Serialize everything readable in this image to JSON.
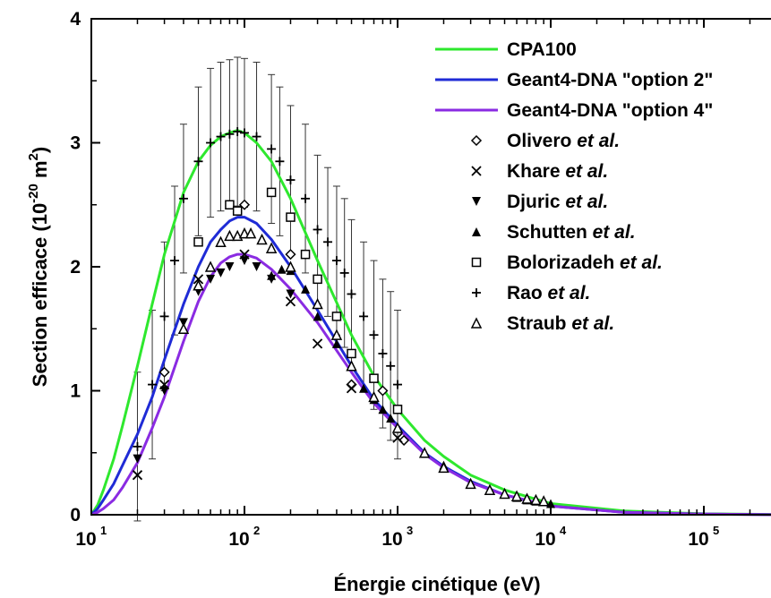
{
  "chart_data": {
    "type": "line",
    "xlabel": "Énergie cinétique (eV)",
    "ylabel": {
      "text": "Section efficace (10",
      "sup": "-20",
      "unit": " m",
      "unit_sup": "2",
      "close": ")"
    },
    "xscale": "log",
    "xlim": [
      10,
      300000
    ],
    "ylim": [
      0,
      4
    ],
    "x_ticks": [
      {
        "value": 10,
        "base": "10",
        "exp": "1"
      },
      {
        "value": 100,
        "base": "10",
        "exp": "2"
      },
      {
        "value": 1000,
        "base": "10",
        "exp": "3"
      },
      {
        "value": 10000,
        "base": "10",
        "exp": "4"
      },
      {
        "value": 100000,
        "base": "10",
        "exp": "5"
      }
    ],
    "y_ticks": [
      0,
      1,
      2,
      3,
      4
    ],
    "legend_position": "top-right",
    "series": [
      {
        "name": "CPA100",
        "color": "#2ee82e",
        "x": [
          10,
          11,
          12,
          14,
          16,
          20,
          25,
          30,
          40,
          50,
          60,
          70,
          80,
          90,
          100,
          120,
          150,
          200,
          300,
          500,
          700,
          1000,
          1500,
          2000,
          3000,
          5000,
          10000,
          30000,
          100000,
          300000
        ],
        "y": [
          0,
          0.08,
          0.2,
          0.45,
          0.72,
          1.2,
          1.7,
          2.1,
          2.6,
          2.85,
          2.98,
          3.05,
          3.08,
          3.1,
          3.08,
          3.0,
          2.85,
          2.55,
          2.05,
          1.45,
          1.12,
          0.85,
          0.6,
          0.47,
          0.32,
          0.2,
          0.09,
          0.03,
          0.008,
          0.002
        ]
      },
      {
        "name": "Geant4-DNA \"option 2\"",
        "color": "#1f2bd6",
        "x": [
          10,
          11,
          12,
          14,
          16,
          20,
          25,
          30,
          40,
          50,
          60,
          70,
          80,
          90,
          100,
          120,
          150,
          200,
          300,
          500,
          700,
          1000,
          1500,
          2000,
          3000,
          5000,
          10000,
          30000,
          100000,
          300000
        ],
        "y": [
          0,
          0.05,
          0.12,
          0.25,
          0.4,
          0.65,
          0.95,
          1.25,
          1.7,
          2.0,
          2.2,
          2.3,
          2.37,
          2.4,
          2.4,
          2.35,
          2.22,
          2.0,
          1.65,
          1.2,
          0.93,
          0.72,
          0.5,
          0.39,
          0.27,
          0.16,
          0.07,
          0.02,
          0.005,
          0.001
        ]
      },
      {
        "name": "Geant4-DNA \"option 4\"",
        "color": "#8a2be2",
        "x": [
          10,
          11,
          12,
          14,
          16,
          20,
          25,
          30,
          40,
          50,
          60,
          70,
          80,
          90,
          100,
          120,
          150,
          200,
          300,
          500,
          700,
          1000,
          1500,
          2000,
          3000,
          5000,
          10000,
          30000,
          100000,
          300000
        ],
        "y": [
          0,
          0.02,
          0.05,
          0.12,
          0.22,
          0.42,
          0.7,
          0.95,
          1.4,
          1.72,
          1.92,
          2.03,
          2.08,
          2.1,
          2.1,
          2.07,
          1.98,
          1.82,
          1.55,
          1.15,
          0.9,
          0.7,
          0.49,
          0.38,
          0.26,
          0.16,
          0.07,
          0.02,
          0.005,
          0.001
        ]
      }
    ],
    "scatter": [
      {
        "name": "Olivero",
        "suffix": "et al.",
        "marker": "diamond",
        "points": [
          [
            30,
            1.15
          ],
          [
            100,
            2.5
          ],
          [
            200,
            2.1
          ],
          [
            500,
            1.05
          ],
          [
            800,
            1.0
          ],
          [
            1100,
            0.6
          ]
        ]
      },
      {
        "name": "Khare",
        "suffix": "et al.",
        "marker": "x",
        "points": [
          [
            20,
            0.32
          ],
          [
            30,
            1.05
          ],
          [
            50,
            1.9
          ],
          [
            100,
            2.1
          ],
          [
            200,
            1.72
          ],
          [
            300,
            1.38
          ],
          [
            500,
            1.02
          ],
          [
            1000,
            0.62
          ]
        ]
      },
      {
        "name": "Djuric",
        "suffix": "et al.",
        "marker": "tri-down",
        "points": [
          [
            20,
            0.45
          ],
          [
            30,
            1.0
          ],
          [
            40,
            1.55
          ],
          [
            50,
            1.8
          ],
          [
            60,
            1.9
          ],
          [
            70,
            1.95
          ],
          [
            80,
            2.0
          ],
          [
            100,
            2.05
          ],
          [
            120,
            2.0
          ],
          [
            150,
            1.9
          ],
          [
            200,
            1.78
          ]
        ]
      },
      {
        "name": "Schutten",
        "suffix": "et al.",
        "marker": "tri-up",
        "points": [
          [
            150,
            1.93
          ],
          [
            175,
            1.98
          ],
          [
            200,
            1.97
          ],
          [
            250,
            1.82
          ],
          [
            300,
            1.6
          ],
          [
            400,
            1.38
          ],
          [
            500,
            1.2
          ],
          [
            600,
            1.02
          ],
          [
            700,
            0.93
          ],
          [
            800,
            0.85
          ],
          [
            900,
            0.78
          ],
          [
            1000,
            0.7
          ],
          [
            1500,
            0.5
          ],
          [
            2000,
            0.4
          ],
          [
            3000,
            0.26
          ],
          [
            4000,
            0.2
          ],
          [
            5000,
            0.17
          ],
          [
            6000,
            0.14
          ],
          [
            7000,
            0.12
          ],
          [
            8000,
            0.11
          ],
          [
            10000,
            0.09
          ]
        ]
      },
      {
        "name": "Bolorizadeh",
        "suffix": "et al.",
        "marker": "square",
        "points": [
          [
            50,
            2.2
          ],
          [
            80,
            2.5
          ],
          [
            90,
            2.45
          ],
          [
            150,
            2.6
          ],
          [
            200,
            2.4
          ],
          [
            250,
            2.1
          ],
          [
            300,
            1.9
          ],
          [
            400,
            1.6
          ],
          [
            500,
            1.3
          ],
          [
            700,
            1.1
          ],
          [
            1000,
            0.85
          ]
        ]
      },
      {
        "name": "Rao",
        "suffix": "et al.",
        "marker": "plus",
        "points": [
          [
            20,
            0.55
          ],
          [
            25,
            1.05
          ],
          [
            30,
            1.6
          ],
          [
            35,
            2.05
          ],
          [
            40,
            2.55
          ],
          [
            50,
            2.85
          ],
          [
            60,
            3.0
          ],
          [
            70,
            3.05
          ],
          [
            80,
            3.07
          ],
          [
            90,
            3.09
          ],
          [
            100,
            3.08
          ],
          [
            120,
            3.05
          ],
          [
            150,
            2.95
          ],
          [
            170,
            2.85
          ],
          [
            200,
            2.7
          ],
          [
            250,
            2.55
          ],
          [
            300,
            2.3
          ],
          [
            350,
            2.2
          ],
          [
            400,
            2.05
          ],
          [
            450,
            1.95
          ],
          [
            500,
            1.78
          ],
          [
            600,
            1.6
          ],
          [
            700,
            1.45
          ],
          [
            800,
            1.3
          ],
          [
            900,
            1.2
          ],
          [
            1000,
            1.05
          ]
        ]
      },
      {
        "name": "Straub",
        "suffix": "et al.",
        "marker": "tri-open",
        "points": [
          [
            40,
            1.5
          ],
          [
            50,
            1.85
          ],
          [
            60,
            2.0
          ],
          [
            70,
            2.2
          ],
          [
            80,
            2.25
          ],
          [
            90,
            2.25
          ],
          [
            100,
            2.27
          ],
          [
            110,
            2.27
          ],
          [
            130,
            2.22
          ],
          [
            150,
            2.15
          ],
          [
            200,
            2.0
          ],
          [
            300,
            1.7
          ],
          [
            400,
            1.45
          ],
          [
            500,
            1.2
          ],
          [
            700,
            0.95
          ],
          [
            1000,
            0.7
          ],
          [
            1500,
            0.5
          ],
          [
            2000,
            0.38
          ],
          [
            3000,
            0.25
          ],
          [
            4000,
            0.2
          ],
          [
            5000,
            0.17
          ],
          [
            6000,
            0.15
          ],
          [
            7000,
            0.13
          ],
          [
            8000,
            0.12
          ],
          [
            9000,
            0.11
          ]
        ]
      }
    ],
    "rao_error": 0.6
  }
}
